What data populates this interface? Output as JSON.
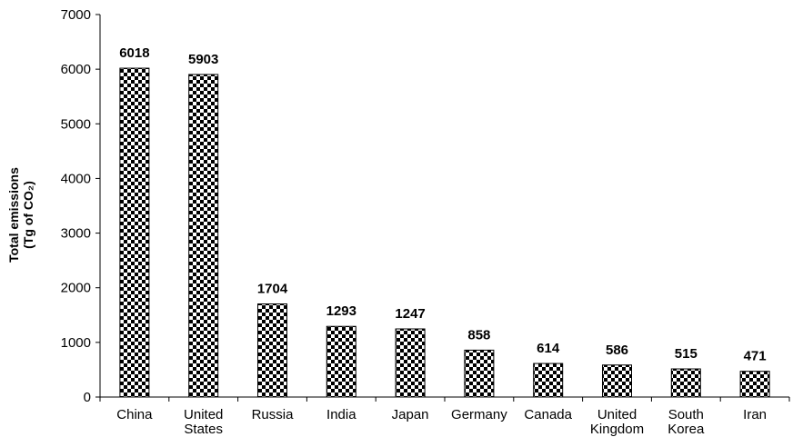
{
  "chart_data": {
    "type": "bar",
    "title": "",
    "xlabel": "",
    "ylabel": [
      "Total emissions",
      "(Tg of CO₂)"
    ],
    "ylim": [
      0,
      7000
    ],
    "yticks": [
      0,
      1000,
      2000,
      3000,
      4000,
      5000,
      6000,
      7000
    ],
    "grid": false,
    "legend": "none",
    "categories": [
      [
        "China"
      ],
      [
        "United",
        "States"
      ],
      [
        "Russia"
      ],
      [
        "India"
      ],
      [
        "Japan"
      ],
      [
        "Germany"
      ],
      [
        "Canada"
      ],
      [
        "United",
        "Kingdom"
      ],
      [
        "South",
        "Korea"
      ],
      [
        "Iran"
      ]
    ],
    "values": [
      6018,
      5903,
      1704,
      1293,
      1247,
      858,
      614,
      586,
      515,
      471
    ],
    "data_labels": [
      "6018",
      "5903",
      "1704",
      "1293",
      "1247",
      "858",
      "614",
      "586",
      "515",
      "471"
    ],
    "colors": {
      "bar_fill": "#ffffff",
      "bar_pattern": "#000000",
      "axis": "#000000"
    }
  }
}
